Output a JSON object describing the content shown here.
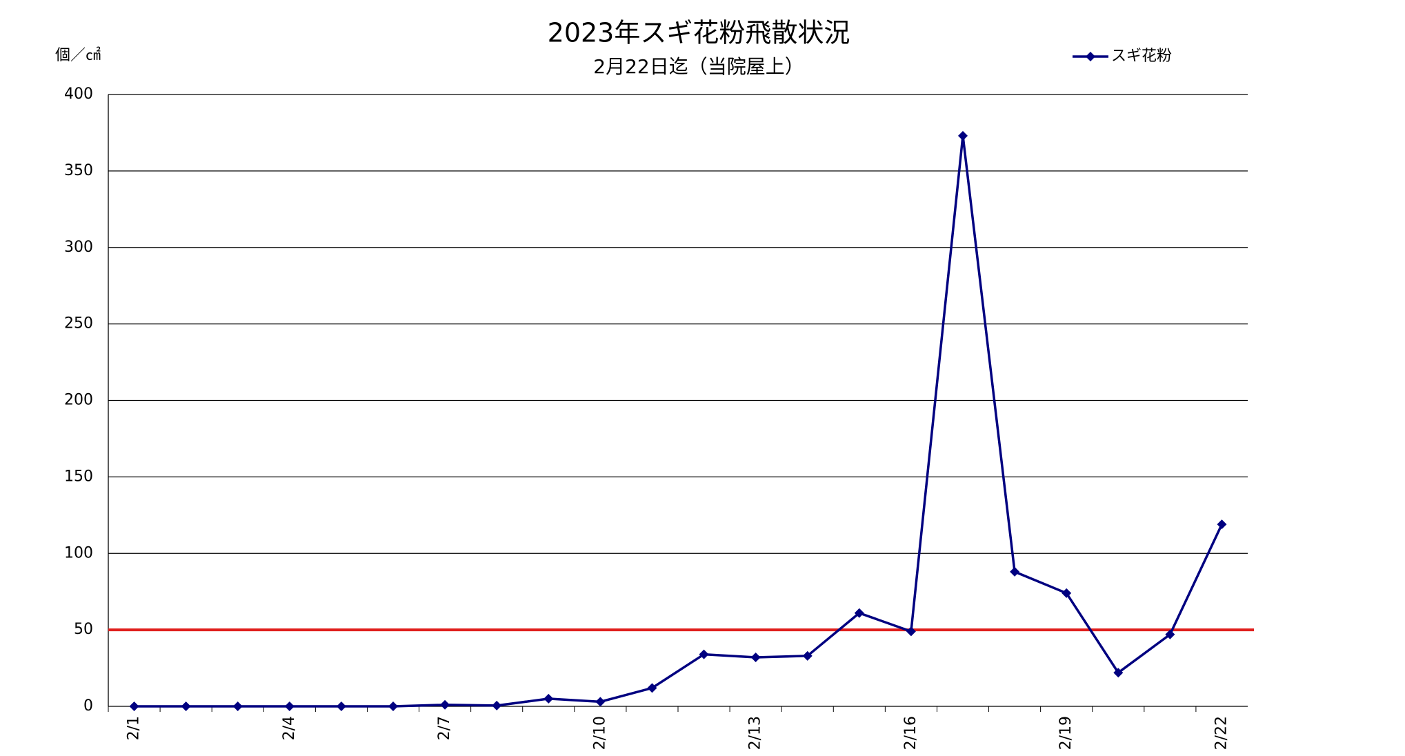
{
  "chart_data": {
    "type": "line",
    "title": "2023年スギ花粉飛散状況",
    "subtitle": "2月22日迄（当院屋上）",
    "y_label": "個／㎠",
    "categories": [
      "2/1",
      null,
      null,
      "2/4",
      null,
      null,
      "2/7",
      null,
      null,
      "2/10",
      null,
      null,
      "2/13",
      null,
      null,
      "2/16",
      null,
      null,
      "2/19",
      null,
      null,
      "2/22"
    ],
    "series": [
      {
        "name": "スギ花粉",
        "color": "#000080",
        "values": [
          0,
          0,
          0,
          0,
          0,
          0,
          1,
          0.5,
          5,
          3,
          12,
          34,
          32,
          33,
          61,
          49,
          373,
          88,
          74,
          22,
          47,
          119
        ]
      }
    ],
    "reference_line": {
      "value": 50,
      "color": "#e0201e"
    },
    "ylim": [
      0,
      400
    ],
    "yticks": [
      0,
      50,
      100,
      150,
      200,
      250,
      300,
      350,
      400
    ],
    "grid": true,
    "legend": "top-right"
  }
}
